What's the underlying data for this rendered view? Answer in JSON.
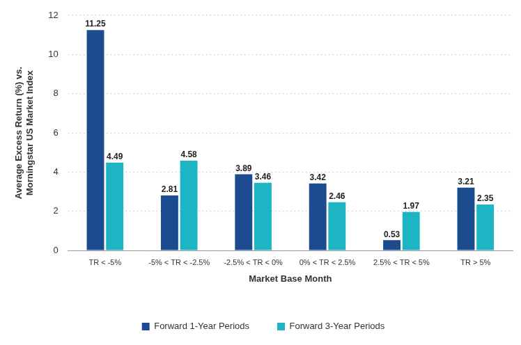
{
  "chart_data": {
    "type": "bar",
    "y_label": [
      "Average Excess Return (%) vs.",
      "Morningstar US Market Index"
    ],
    "x_label": "Market Base Month",
    "categories": [
      "TR < -5%",
      "-5% < TR < -2.5%",
      "-2.5% < TR < 0%",
      "0% < TR < 2.5%",
      "2.5% < TR < 5%",
      "TR > 5%"
    ],
    "series": [
      {
        "name": "Forward 1-Year Periods",
        "color": "#1c4b8f",
        "values": [
          11.25,
          2.81,
          3.89,
          3.42,
          0.53,
          3.21
        ]
      },
      {
        "name": "Forward 3-Year Periods",
        "color": "#1db5c4",
        "values": [
          4.49,
          4.58,
          3.46,
          2.46,
          1.97,
          2.35
        ]
      }
    ],
    "ylim": [
      0,
      12
    ],
    "yticks": [
      0,
      2,
      4,
      6,
      8,
      10,
      12
    ],
    "grid": true,
    "legend": "bottom",
    "data_labels": true
  }
}
